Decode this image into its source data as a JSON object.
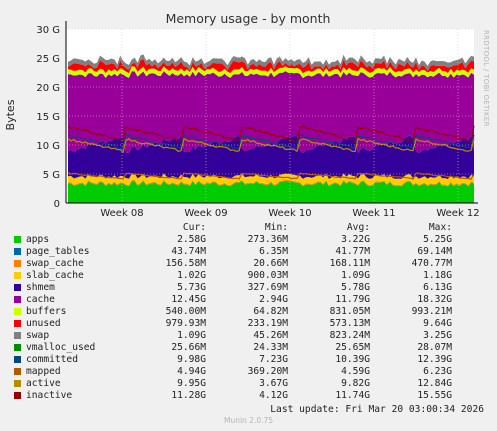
{
  "chart_data": {
    "type": "area",
    "title": "Memory usage - by month",
    "ylabel": "Bytes",
    "ylim": [
      0,
      30
    ],
    "yticks": [
      "0",
      "5 G",
      "10 G",
      "15 G",
      "20 G",
      "25 G",
      "30 G"
    ],
    "xticks": [
      "Week 08",
      "Week 09",
      "Week 10",
      "Week 11",
      "Week 12"
    ],
    "grid": true,
    "legend_position": "bottom",
    "watermark": "RRDTOOL / TOBI OETIKER",
    "columns": [
      "Cur:",
      "Min:",
      "Avg:",
      "Max:"
    ],
    "stacked": [
      {
        "name": "apps",
        "color": "#00cc00",
        "cur": "2.58G",
        "min": "273.36M",
        "avg": "3.22G",
        "max": "5.25G",
        "value": 3.22
      },
      {
        "name": "page_tables",
        "color": "#0066b3",
        "cur": "43.74M",
        "min": "6.35M",
        "avg": "41.77M",
        "max": "69.14M",
        "value": 0.04
      },
      {
        "name": "swap_cache",
        "color": "#ff8000",
        "cur": "156.58M",
        "min": "20.66M",
        "avg": "168.11M",
        "max": "470.77M",
        "value": 0.17
      },
      {
        "name": "slab_cache",
        "color": "#ffcc00",
        "cur": "1.02G",
        "min": "900.03M",
        "avg": "1.09G",
        "max": "1.18G",
        "value": 1.09
      },
      {
        "name": "shmem",
        "color": "#330099",
        "cur": "5.73G",
        "min": "327.69M",
        "avg": "5.78G",
        "max": "6.13G",
        "value": 5.78
      },
      {
        "name": "cache",
        "color": "#990099",
        "cur": "12.45G",
        "min": "2.94G",
        "avg": "11.79G",
        "max": "18.32G",
        "value": 11.79
      },
      {
        "name": "buffers",
        "color": "#ccff00",
        "cur": "540.00M",
        "min": "64.82M",
        "avg": "831.05M",
        "max": "993.21M",
        "value": 0.83
      },
      {
        "name": "unused",
        "color": "#ff0000",
        "cur": "979.93M",
        "min": "233.19M",
        "avg": "573.13M",
        "max": "9.64G",
        "value": 0.57
      },
      {
        "name": "swap",
        "color": "#808080",
        "cur": "1.09G",
        "min": "45.26M",
        "avg": "823.24M",
        "max": "3.25G",
        "value": 0.82
      }
    ],
    "lines": [
      {
        "name": "vmalloc_used",
        "color": "#008f00",
        "cur": "25.66M",
        "min": "24.33M",
        "avg": "25.65M",
        "max": "28.07M"
      },
      {
        "name": "committed",
        "color": "#00487d",
        "cur": "9.98G",
        "min": "7.23G",
        "avg": "10.39G",
        "max": "12.39G"
      },
      {
        "name": "mapped",
        "color": "#b35a00",
        "cur": "4.94G",
        "min": "369.20M",
        "avg": "4.59G",
        "max": "6.23G"
      },
      {
        "name": "active",
        "color": "#b38f00",
        "cur": "9.95G",
        "min": "3.67G",
        "avg": "9.82G",
        "max": "12.84G"
      },
      {
        "name": "inactive",
        "color": "#990000",
        "cur": "11.28G",
        "min": "4.12G",
        "avg": "11.74G",
        "max": "15.55G"
      }
    ]
  },
  "footer": {
    "last_update": "Last update: Fri Mar 20 03:00:34 2026"
  },
  "credit": "Munin 2.0.75",
  "legend_order": [
    "apps",
    "page_tables",
    "swap_cache",
    "slab_cache",
    "shmem",
    "cache",
    "buffers",
    "unused",
    "swap",
    "vmalloc_used",
    "committed",
    "mapped",
    "active",
    "inactive"
  ],
  "legend_colors": {
    "apps": "#00cc00",
    "page_tables": "#0066b3",
    "swap_cache": "#ff8000",
    "slab_cache": "#ffcc00",
    "shmem": "#330099",
    "cache": "#990099",
    "buffers": "#ccff00",
    "unused": "#ff0000",
    "swap": "#808080",
    "vmalloc_used": "#008f00",
    "committed": "#00487d",
    "mapped": "#b35a00",
    "active": "#b38f00",
    "inactive": "#990000"
  }
}
